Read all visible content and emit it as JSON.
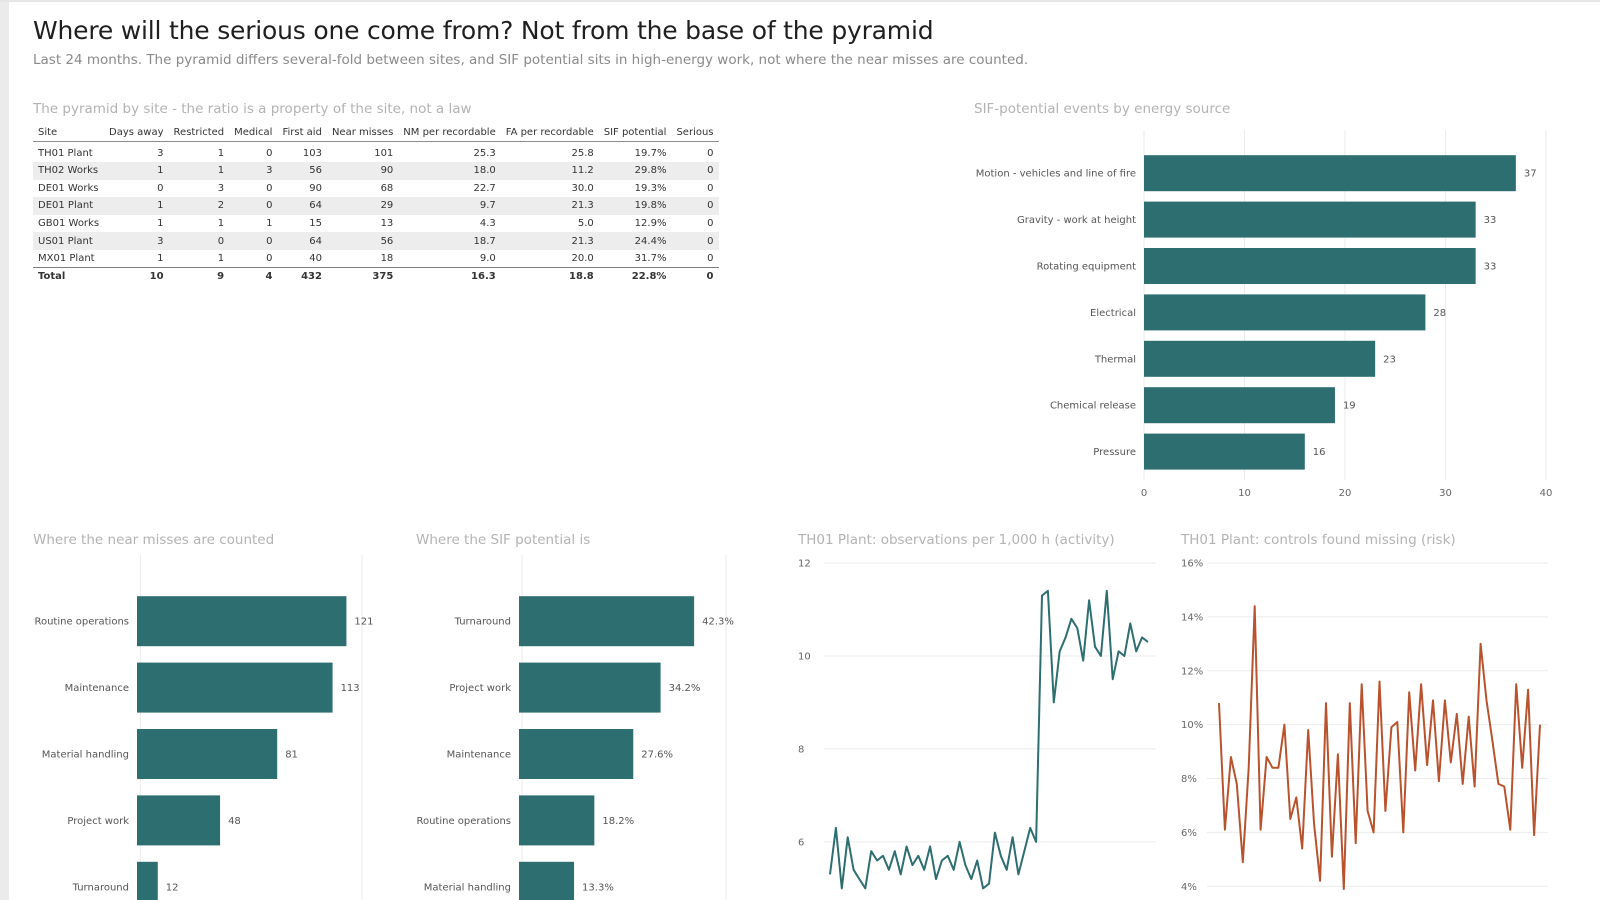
{
  "header": {
    "title": "Where will the serious one come from? Not from the base of the pyramid",
    "subtitle": "Last 24 months. The pyramid differs several-fold between sites, and SIF potential sits in high-energy work, not where the near misses are counted."
  },
  "colors": {
    "teal": "#2d6e70",
    "rust": "#b8532e",
    "grid": "#e6e6e6"
  },
  "pyramid_table": {
    "title": "The pyramid by site - the ratio is a property of the site, not a law",
    "columns": [
      "Site",
      "Days away",
      "Restricted",
      "Medical",
      "First aid",
      "Near misses",
      "NM per recordable",
      "FA per recordable",
      "SIF potential",
      "Serious"
    ],
    "rows": [
      [
        "TH01 Plant",
        "3",
        "1",
        "0",
        "103",
        "101",
        "25.3",
        "25.8",
        "19.7%",
        "0"
      ],
      [
        "TH02 Works",
        "1",
        "1",
        "3",
        "56",
        "90",
        "18.0",
        "11.2",
        "29.8%",
        "0"
      ],
      [
        "DE01 Works",
        "0",
        "3",
        "0",
        "90",
        "68",
        "22.7",
        "30.0",
        "19.3%",
        "0"
      ],
      [
        "DE01 Plant",
        "1",
        "2",
        "0",
        "64",
        "29",
        "9.7",
        "21.3",
        "19.8%",
        "0"
      ],
      [
        "GB01 Works",
        "1",
        "1",
        "1",
        "15",
        "13",
        "4.3",
        "5.0",
        "12.9%",
        "0"
      ],
      [
        "US01 Plant",
        "3",
        "0",
        "0",
        "64",
        "56",
        "18.7",
        "21.3",
        "24.4%",
        "0"
      ],
      [
        "MX01 Plant",
        "1",
        "1",
        "0",
        "40",
        "18",
        "9.0",
        "20.0",
        "31.7%",
        "0"
      ]
    ],
    "total": [
      "Total",
      "10",
      "9",
      "4",
      "432",
      "375",
      "16.3",
      "18.8",
      "22.8%",
      "0"
    ]
  },
  "chart_data": [
    {
      "type": "bar",
      "orientation": "horizontal",
      "title": "SIF-potential events by energy source",
      "categories": [
        "Motion - vehicles and line of fire",
        "Gravity - work at height",
        "Rotating equipment",
        "Electrical",
        "Thermal",
        "Chemical release",
        "Pressure"
      ],
      "values": [
        37,
        33,
        33,
        28,
        23,
        19,
        16
      ],
      "data_labels": [
        "37",
        "33",
        "33",
        "28",
        "23",
        "19",
        "16"
      ],
      "xlim": [
        0,
        40
      ],
      "xticks": [
        0,
        10,
        20,
        30,
        40
      ],
      "xtick_labels": [
        "0",
        "10",
        "20",
        "30",
        "40"
      ],
      "color": "#2d6e70"
    },
    {
      "type": "bar",
      "orientation": "horizontal",
      "title": "Where the near misses are counted",
      "categories": [
        "Routine operations",
        "Maintenance",
        "Material handling",
        "Project work",
        "Turnaround"
      ],
      "values": [
        121,
        113,
        81,
        48,
        12
      ],
      "data_labels": [
        "121",
        "113",
        "81",
        "48",
        "12"
      ],
      "xlim": [
        0,
        130
      ],
      "color": "#2d6e70"
    },
    {
      "type": "bar",
      "orientation": "horizontal",
      "title": "Where the SIF potential is",
      "categories": [
        "Turnaround",
        "Project work",
        "Maintenance",
        "Routine operations",
        "Material handling"
      ],
      "values": [
        42.3,
        34.2,
        27.6,
        18.2,
        13.3
      ],
      "data_labels": [
        "42.3%",
        "34.2%",
        "27.6%",
        "18.2%",
        "13.3%"
      ],
      "xlim": [
        0,
        50
      ],
      "color": "#2d6e70"
    },
    {
      "type": "line",
      "title": "TH01 Plant: observations per 1,000 h (activity)",
      "ylim": [
        4.9,
        12
      ],
      "yticks": [
        6,
        8,
        10,
        12
      ],
      "ytick_labels": [
        "6",
        "8",
        "10",
        "12"
      ],
      "x": [
        1,
        2,
        3,
        4,
        5,
        6,
        7,
        8,
        9,
        10,
        11,
        12,
        13,
        14,
        15,
        16,
        17,
        18,
        19,
        20,
        21,
        22,
        23,
        24,
        25,
        26,
        27,
        28,
        29,
        30,
        31,
        32,
        33,
        34,
        35,
        36,
        37,
        38,
        39,
        40,
        41,
        42,
        43,
        44,
        45,
        46,
        47,
        48,
        49,
        50,
        51,
        52,
        53,
        54,
        55
      ],
      "values": [
        5.3,
        6.3,
        5.0,
        6.1,
        5.4,
        5.2,
        5.0,
        5.8,
        5.6,
        5.7,
        5.4,
        5.8,
        5.3,
        5.9,
        5.5,
        5.7,
        5.4,
        5.9,
        5.2,
        5.6,
        5.7,
        5.4,
        6.0,
        5.5,
        5.2,
        5.6,
        5.0,
        5.1,
        6.2,
        5.7,
        5.4,
        6.1,
        5.3,
        5.8,
        6.3,
        6.0,
        11.3,
        11.4,
        9.0,
        10.1,
        10.4,
        10.8,
        10.6,
        9.9,
        11.2,
        10.2,
        10.0,
        11.4,
        9.5,
        10.1,
        10.0,
        10.7,
        10.1,
        10.4,
        10.3
      ],
      "color": "#2d6e70"
    },
    {
      "type": "line",
      "title": "TH01 Plant: controls found missing (risk)",
      "ylim": [
        3.9,
        16
      ],
      "yticks": [
        4,
        6,
        8,
        10,
        12,
        14,
        16
      ],
      "ytick_labels": [
        "4%",
        "6%",
        "8%",
        "10%",
        "12%",
        "14%",
        "16%"
      ],
      "x": [
        1,
        2,
        3,
        4,
        5,
        6,
        7,
        8,
        9,
        10,
        11,
        12,
        13,
        14,
        15,
        16,
        17,
        18,
        19,
        20,
        21,
        22,
        23,
        24,
        25,
        26,
        27,
        28,
        29,
        30,
        31,
        32,
        33,
        34,
        35,
        36,
        37,
        38,
        39,
        40,
        41,
        42,
        43,
        44,
        45,
        46,
        47,
        48,
        49,
        50,
        51,
        52,
        53,
        54,
        55
      ],
      "values": [
        10.8,
        6.1,
        8.8,
        7.8,
        4.9,
        8.4,
        14.4,
        6.1,
        8.8,
        8.4,
        8.4,
        10.0,
        6.5,
        7.3,
        5.4,
        9.8,
        6.3,
        4.2,
        10.8,
        5.1,
        8.9,
        3.9,
        10.8,
        5.6,
        11.5,
        6.8,
        6.0,
        11.6,
        6.8,
        9.9,
        10.1,
        6.0,
        11.2,
        8.3,
        11.5,
        8.5,
        10.9,
        7.9,
        10.9,
        8.6,
        10.4,
        7.8,
        10.3,
        7.7,
        13.0,
        10.9,
        9.4,
        7.8,
        7.7,
        6.1,
        11.5,
        8.4,
        11.3,
        5.9,
        10.0
      ],
      "color": "#b8532e"
    }
  ]
}
